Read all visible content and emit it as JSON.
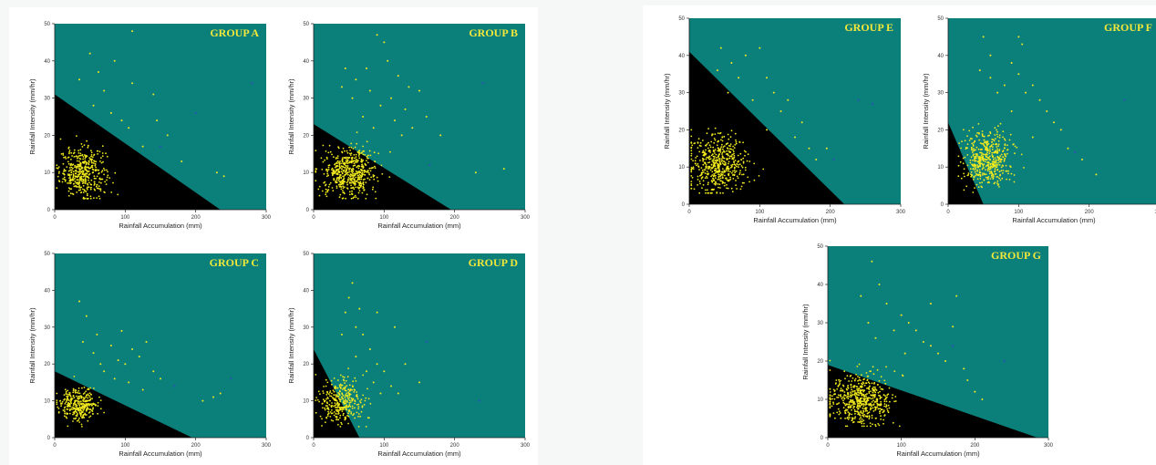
{
  "colors": {
    "plot_background": "#0b7f7a",
    "threshold_region": "#000000",
    "point": "#f1ea1e",
    "outlier_point": "#2b55b8",
    "group_label": "#f2e83a"
  },
  "chart_data": [
    {
      "type": "scatter",
      "title": "GROUP A",
      "xlabel": "Rainfall Accumulation (mm)",
      "ylabel": "Rainfall Intensity (mm/hr)",
      "xlim": [
        0,
        300
      ],
      "ylim": [
        0,
        50
      ],
      "xticks": [
        0,
        100,
        200,
        300
      ],
      "yticks": [
        0,
        10,
        20,
        30,
        40,
        50
      ],
      "threshold_line": {
        "y_intercept": 31,
        "x_intercept": 235
      },
      "cluster": {
        "x_center": 40,
        "x_spread": 30,
        "y_center": 10,
        "y_spread": 6,
        "count": 420
      },
      "scattered_points": [
        [
          50,
          42
        ],
        [
          70,
          32
        ],
        [
          110,
          34
        ],
        [
          105,
          22
        ],
        [
          140,
          31
        ],
        [
          80,
          26
        ],
        [
          160,
          20
        ],
        [
          145,
          24
        ],
        [
          35,
          35
        ],
        [
          62,
          37
        ],
        [
          55,
          28
        ],
        [
          95,
          24
        ],
        [
          125,
          17
        ],
        [
          230,
          10
        ],
        [
          240,
          9
        ],
        [
          180,
          13
        ],
        [
          85,
          40
        ],
        [
          110,
          48
        ]
      ],
      "blue_points": [
        [
          200,
          26
        ],
        [
          280,
          34
        ],
        [
          150,
          17
        ]
      ]
    },
    {
      "type": "scatter",
      "title": "GROUP B",
      "xlabel": "Rainfall Accumulation (mm)",
      "ylabel": "Rainfall Intensity (mm/hr)",
      "xlim": [
        0,
        300
      ],
      "ylim": [
        0,
        50
      ],
      "xticks": [
        0,
        100,
        200,
        300
      ],
      "yticks": [
        0,
        10,
        20,
        30,
        40,
        50
      ],
      "threshold_line": {
        "y_intercept": 23,
        "x_intercept": 195
      },
      "cluster": {
        "x_center": 50,
        "x_spread": 35,
        "y_center": 10,
        "y_spread": 6,
        "count": 520
      },
      "scattered_points": [
        [
          45,
          38
        ],
        [
          60,
          35
        ],
        [
          80,
          32
        ],
        [
          95,
          28
        ],
        [
          110,
          30
        ],
        [
          120,
          36
        ],
        [
          130,
          27
        ],
        [
          140,
          22
        ],
        [
          90,
          47
        ],
        [
          100,
          45
        ],
        [
          150,
          32
        ],
        [
          160,
          25
        ],
        [
          180,
          20
        ],
        [
          230,
          10
        ],
        [
          270,
          11
        ],
        [
          70,
          25
        ],
        [
          85,
          22
        ],
        [
          105,
          40
        ],
        [
          125,
          20
        ],
        [
          40,
          33
        ],
        [
          55,
          30
        ],
        [
          115,
          24
        ],
        [
          135,
          33
        ],
        [
          75,
          38
        ]
      ],
      "blue_points": [
        [
          240,
          34
        ],
        [
          165,
          12
        ]
      ]
    },
    {
      "type": "scatter",
      "title": "GROUP C",
      "xlabel": "Rainfall Accumulation (mm)",
      "ylabel": "Rainfall Intensity (mm/hr)",
      "xlim": [
        0,
        300
      ],
      "ylim": [
        0,
        50
      ],
      "xticks": [
        0,
        100,
        200,
        300
      ],
      "yticks": [
        0,
        10,
        20,
        30,
        40,
        50
      ],
      "threshold_line": {
        "y_intercept": 18,
        "x_intercept": 195
      },
      "cluster": {
        "x_center": 35,
        "x_spread": 25,
        "y_center": 9,
        "y_spread": 4,
        "count": 320
      },
      "scattered_points": [
        [
          35,
          37
        ],
        [
          45,
          33
        ],
        [
          60,
          28
        ],
        [
          80,
          25
        ],
        [
          95,
          29
        ],
        [
          100,
          20
        ],
        [
          110,
          24
        ],
        [
          120,
          22
        ],
        [
          130,
          26
        ],
        [
          140,
          18
        ],
        [
          150,
          16
        ],
        [
          70,
          18
        ],
        [
          85,
          16
        ],
        [
          210,
          10
        ],
        [
          225,
          11
        ],
        [
          235,
          12
        ],
        [
          55,
          23
        ],
        [
          65,
          20
        ],
        [
          105,
          15
        ],
        [
          125,
          13
        ],
        [
          90,
          21
        ],
        [
          40,
          26
        ]
      ],
      "blue_points": [
        [
          170,
          14
        ],
        [
          250,
          16
        ]
      ]
    },
    {
      "type": "scatter",
      "title": "GROUP D",
      "xlabel": "Rainfall Accumulation (mm)",
      "ylabel": "Rainfall Intensity (mm/hr)",
      "xlim": [
        0,
        300
      ],
      "ylim": [
        0,
        50
      ],
      "xticks": [
        0,
        100,
        200,
        300
      ],
      "yticks": [
        0,
        10,
        20,
        30,
        40,
        50
      ],
      "threshold_line": {
        "y_intercept": 24,
        "x_intercept": 65
      },
      "cluster": {
        "x_center": 40,
        "x_spread": 30,
        "y_center": 10,
        "y_spread": 6,
        "count": 320
      },
      "scattered_points": [
        [
          55,
          42
        ],
        [
          50,
          38
        ],
        [
          45,
          34
        ],
        [
          60,
          30
        ],
        [
          70,
          28
        ],
        [
          80,
          24
        ],
        [
          90,
          20
        ],
        [
          100,
          18
        ],
        [
          110,
          14
        ],
        [
          120,
          12
        ],
        [
          60,
          22
        ],
        [
          75,
          18
        ],
        [
          85,
          15
        ],
        [
          95,
          12
        ],
        [
          115,
          30
        ],
        [
          130,
          20
        ],
        [
          150,
          15
        ],
        [
          65,
          35
        ],
        [
          40,
          28
        ],
        [
          90,
          34
        ]
      ],
      "blue_points": [
        [
          160,
          26
        ],
        [
          235,
          10
        ]
      ]
    },
    {
      "type": "scatter",
      "title": "GROUP E",
      "xlabel": "Rainfall Accumulation (mm)",
      "ylabel": "Rainfall Intensity (mm/hr)",
      "xlim": [
        0,
        300
      ],
      "ylim": [
        0,
        50
      ],
      "xticks": [
        0,
        100,
        200,
        300
      ],
      "yticks": [
        0,
        10,
        20,
        30,
        40,
        50
      ],
      "threshold_line": {
        "y_intercept": 41,
        "x_intercept": 220
      },
      "cluster": {
        "x_center": 40,
        "x_spread": 35,
        "y_center": 11,
        "y_spread": 7,
        "count": 520
      },
      "scattered_points": [
        [
          45,
          42
        ],
        [
          60,
          38
        ],
        [
          80,
          40
        ],
        [
          100,
          42
        ],
        [
          110,
          34
        ],
        [
          120,
          30
        ],
        [
          130,
          25
        ],
        [
          140,
          28
        ],
        [
          160,
          22
        ],
        [
          150,
          18
        ],
        [
          170,
          15
        ],
        [
          90,
          28
        ],
        [
          70,
          34
        ],
        [
          40,
          36
        ],
        [
          55,
          30
        ],
        [
          180,
          12
        ],
        [
          195,
          15
        ],
        [
          110,
          20
        ]
      ],
      "blue_points": [
        [
          240,
          28
        ],
        [
          260,
          27
        ],
        [
          205,
          12
        ]
      ]
    },
    {
      "type": "scatter",
      "title": "GROUP F",
      "xlabel": "Rainfall Accumulation (mm)",
      "ylabel": "Rainfall Intensity (mm/hr)",
      "xlim": [
        0,
        300
      ],
      "ylim": [
        0,
        50
      ],
      "xticks": [
        0,
        100,
        200,
        300
      ],
      "yticks": [
        0,
        10,
        20,
        30,
        40,
        50
      ],
      "threshold_line": {
        "y_intercept": 22,
        "x_intercept": 50
      },
      "cluster": {
        "x_center": 55,
        "x_spread": 30,
        "y_center": 12,
        "y_spread": 7,
        "count": 480
      },
      "scattered_points": [
        [
          50,
          45
        ],
        [
          60,
          40
        ],
        [
          90,
          38
        ],
        [
          100,
          35
        ],
        [
          110,
          30
        ],
        [
          120,
          32
        ],
        [
          130,
          28
        ],
        [
          140,
          25
        ],
        [
          150,
          22
        ],
        [
          160,
          20
        ],
        [
          170,
          15
        ],
        [
          190,
          12
        ],
        [
          210,
          8
        ],
        [
          100,
          45
        ],
        [
          105,
          43
        ],
        [
          80,
          32
        ],
        [
          70,
          30
        ],
        [
          60,
          34
        ],
        [
          90,
          25
        ],
        [
          120,
          18
        ],
        [
          45,
          36
        ]
      ],
      "blue_points": [
        [
          250,
          28
        ],
        [
          180,
          14
        ]
      ]
    },
    {
      "type": "scatter",
      "title": "GROUP G",
      "xlabel": "Rainfall Accumulation (mm)",
      "ylabel": "Rainfall Intensity (mm/hr)",
      "xlim": [
        0,
        300
      ],
      "ylim": [
        0,
        50
      ],
      "xticks": [
        0,
        100,
        200,
        300
      ],
      "yticks": [
        0,
        10,
        20,
        30,
        40,
        50
      ],
      "threshold_line": {
        "y_intercept": 19,
        "x_intercept": 285
      },
      "cluster": {
        "x_center": 45,
        "x_spread": 40,
        "y_center": 10,
        "y_spread": 6,
        "count": 560
      },
      "scattered_points": [
        [
          60,
          46
        ],
        [
          70,
          40
        ],
        [
          80,
          35
        ],
        [
          100,
          32
        ],
        [
          110,
          30
        ],
        [
          120,
          28
        ],
        [
          130,
          25
        ],
        [
          140,
          24
        ],
        [
          150,
          22
        ],
        [
          160,
          20
        ],
        [
          175,
          37
        ],
        [
          190,
          15
        ],
        [
          200,
          12
        ],
        [
          210,
          10
        ],
        [
          90,
          28
        ],
        [
          45,
          37
        ],
        [
          55,
          30
        ],
        [
          65,
          26
        ],
        [
          140,
          35
        ],
        [
          170,
          29
        ],
        [
          185,
          18
        ],
        [
          105,
          22
        ]
      ],
      "blue_points": [
        [
          170,
          24
        ],
        [
          240,
          20
        ]
      ]
    }
  ]
}
